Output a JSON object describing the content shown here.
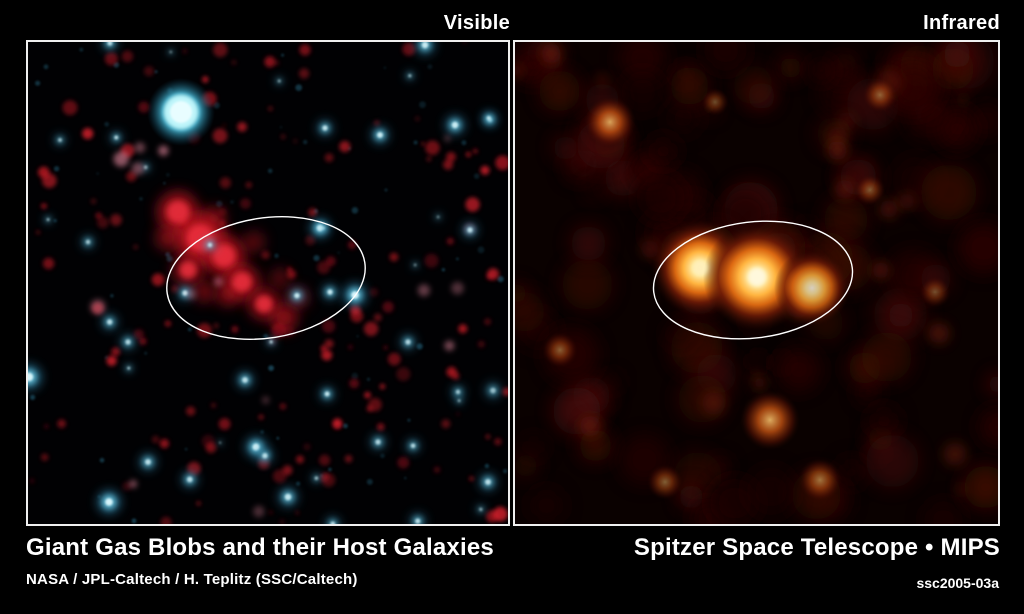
{
  "panels": {
    "visible": {
      "label": "Visible",
      "description": "visible-light view: cyan host galaxies and red giant gas blob inside white highlight ellipse"
    },
    "infrared": {
      "label": "Infrared",
      "description": "infrared view: three bright orange-yellow sources inside white highlight ellipse over dark red clouds"
    }
  },
  "footer": {
    "title": "Giant Gas Blobs and their Host Galaxies",
    "credit": "NASA / JPL-Caltech / H. Teplitz (SSC/Caltech)",
    "telescope": "Spitzer Space Telescope • MIPS",
    "image_id": "ssc2005-03a"
  },
  "colors": {
    "background": "#000000",
    "panel_border": "#f0f0f0",
    "annotation_ellipse": "#ffffff",
    "text": "#ffffff",
    "visible_galaxy_core": "#d6f4fa",
    "visible_galaxy_mid": "#6cc8e2",
    "visible_galaxy_halo": "#2f8cb4",
    "visible_nebula_reds": [
      "#b01420",
      "#d41a26",
      "#8c0f1a",
      "#e0242e"
    ],
    "infrared_cloud_darks": [
      "#2a0504",
      "#3c0a06",
      "#4c1008",
      "#1c0302"
    ],
    "infrared_cloud_bright": "#7c2410",
    "infrared_glow_core": "#fffbe8",
    "infrared_glow_mid": "#ffb440",
    "infrared_glow_outer": "#701c06"
  }
}
